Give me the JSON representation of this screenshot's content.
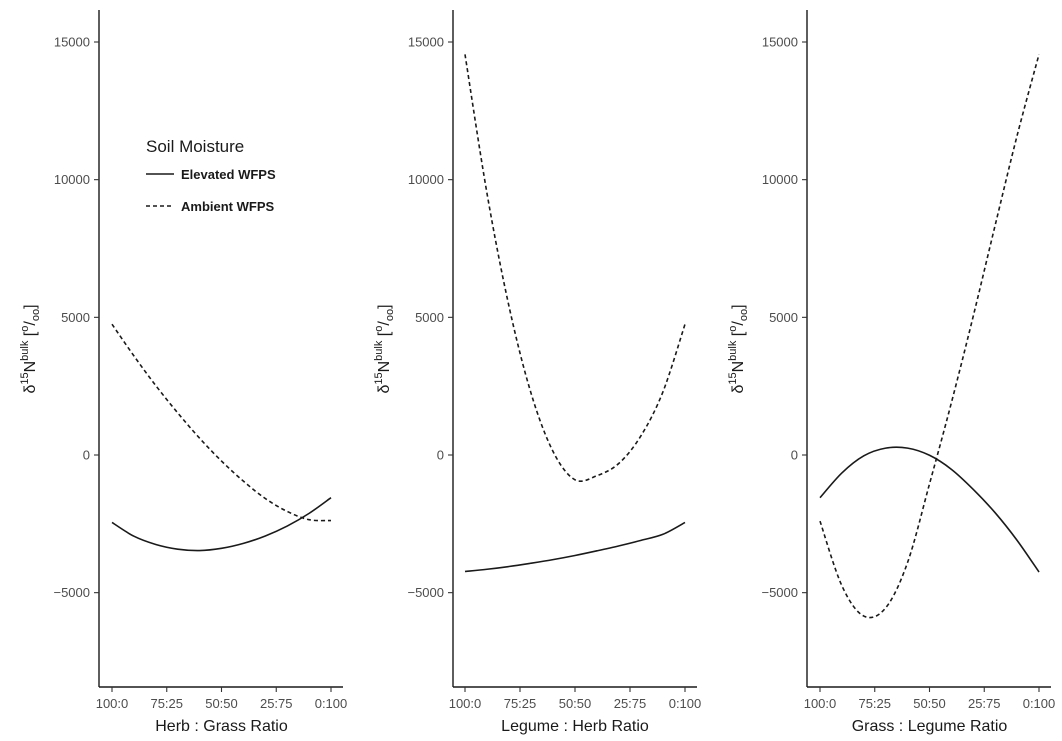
{
  "chart_data": [
    {
      "type": "line",
      "xlabel": "Herb : Grass Ratio",
      "ylabel": "δ15Nbulk [o/oo]",
      "xticks": [
        "100:0",
        "75:25",
        "50:50",
        "25:75",
        "0:100"
      ],
      "xlim": [
        0,
        1
      ],
      "ylim": [
        -8600,
        16000
      ],
      "yticks": [
        -5000,
        0,
        5000,
        10000,
        15000
      ],
      "series": [
        {
          "name": "Elevated WFPS",
          "x": [
            0,
            0.1,
            0.2,
            0.3,
            0.4,
            0.5,
            0.6,
            0.7,
            0.8,
            0.9,
            1.0
          ],
          "values": [
            -2450,
            -2950,
            -3250,
            -3420,
            -3470,
            -3390,
            -3210,
            -2940,
            -2580,
            -2120,
            -1550
          ]
        },
        {
          "name": "Ambient WFPS",
          "x": [
            0,
            0.1,
            0.2,
            0.3,
            0.4,
            0.5,
            0.6,
            0.7,
            0.8,
            0.9,
            1.0
          ],
          "values": [
            4750,
            3600,
            2520,
            1530,
            610,
            -220,
            -950,
            -1580,
            -2050,
            -2350,
            -2380
          ]
        }
      ],
      "legend": {
        "title": "Soil Moisture",
        "position": "top-left",
        "entries": [
          {
            "label": "Elevated WFPS",
            "dash": "solid"
          },
          {
            "label": "Ambient WFPS",
            "dash": "dashed"
          }
        ]
      }
    },
    {
      "type": "line",
      "xlabel": "Legume : Herb Ratio",
      "ylabel": "δ15Nbulk [o/oo]",
      "xticks": [
        "100:0",
        "75:25",
        "50:50",
        "25:75",
        "0:100"
      ],
      "xlim": [
        0,
        1
      ],
      "ylim": [
        -8600,
        16000
      ],
      "yticks": [
        -5000,
        0,
        5000,
        10000,
        15000
      ],
      "series": [
        {
          "name": "Elevated WFPS",
          "x": [
            0,
            0.1,
            0.2,
            0.3,
            0.4,
            0.5,
            0.6,
            0.7,
            0.8,
            0.9,
            1.0
          ],
          "values": [
            -4230,
            -4150,
            -4050,
            -3930,
            -3800,
            -3650,
            -3480,
            -3300,
            -3100,
            -2880,
            -2450
          ]
        },
        {
          "name": "Ambient WFPS",
          "x": [
            0,
            0.1,
            0.2,
            0.3,
            0.4,
            0.5,
            0.6,
            0.7,
            0.8,
            0.9,
            1.0
          ],
          "values": [
            14550,
            9500,
            5400,
            2250,
            130,
            -900,
            -750,
            -300,
            700,
            2300,
            4750
          ]
        }
      ]
    },
    {
      "type": "line",
      "xlabel": "Grass : Legume Ratio",
      "ylabel": "δ15Nbulk [o/oo]",
      "xticks": [
        "100:0",
        "75:25",
        "50:50",
        "25:75",
        "0:100"
      ],
      "xlim": [
        0,
        1
      ],
      "ylim": [
        -8600,
        16000
      ],
      "yticks": [
        -5000,
        0,
        5000,
        10000,
        15000
      ],
      "series": [
        {
          "name": "Elevated WFPS",
          "x": [
            0,
            0.1,
            0.2,
            0.3,
            0.4,
            0.5,
            0.6,
            0.7,
            0.8,
            0.9,
            1.0
          ],
          "values": [
            -1550,
            -650,
            -30,
            250,
            250,
            -10,
            -520,
            -1250,
            -2100,
            -3100,
            -4250
          ]
        },
        {
          "name": "Ambient WFPS",
          "x": [
            0,
            0.1,
            0.2,
            0.3,
            0.4,
            0.5,
            0.6,
            0.7,
            0.8,
            0.9,
            1.0
          ],
          "values": [
            -2400,
            -4750,
            -5850,
            -5550,
            -3900,
            -1050,
            1900,
            5050,
            8350,
            11600,
            14550
          ]
        }
      ]
    }
  ]
}
